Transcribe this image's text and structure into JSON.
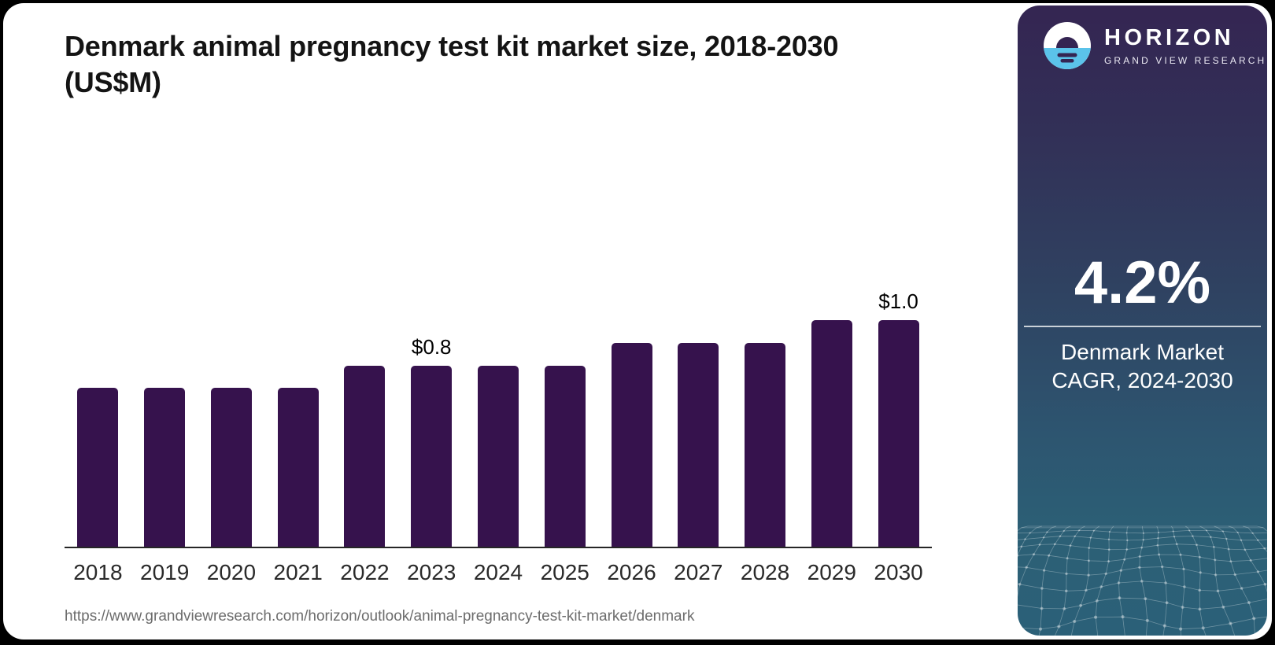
{
  "page": {
    "title_lines": [
      "Denmark animal pregnancy test kit market size, 2018-2030",
      "(US$M)"
    ],
    "source_url": "https://www.grandviewresearch.com/horizon/outlook/animal-pregnancy-test-kit-market/denmark"
  },
  "chart_data": {
    "type": "bar",
    "title": "Denmark animal pregnancy test kit market size, 2018-2030 (US$M)",
    "xlabel": "",
    "ylabel": "",
    "unit": "US$M",
    "categories": [
      "2018",
      "2019",
      "2020",
      "2021",
      "2022",
      "2023",
      "2024",
      "2025",
      "2026",
      "2027",
      "2028",
      "2029",
      "2030"
    ],
    "values": [
      0.7,
      0.7,
      0.7,
      0.7,
      0.8,
      0.8,
      0.8,
      0.8,
      0.9,
      0.9,
      0.9,
      1.0,
      1.0
    ],
    "data_labels": {
      "2023": "$0.8",
      "2030": "$1.0"
    },
    "ylim": [
      0,
      1.08
    ],
    "grid": false,
    "legend": false,
    "bar_color": "#36124D"
  },
  "sidebar": {
    "logo": {
      "brand": "HORIZON",
      "sub_brand": "GRAND VIEW RESEARCH",
      "icon": "horizon-sun-icon"
    },
    "stat_value": "4.2%",
    "stat_label_lines": [
      "Denmark Market",
      "CAGR, 2024-2030"
    ],
    "colors": {
      "gradient_top": "#342552",
      "gradient_mid": "#2f4261",
      "gradient_bottom": "#2b6078",
      "logo_blue": "#5BC3EA",
      "accent_dark": "#342452"
    }
  }
}
